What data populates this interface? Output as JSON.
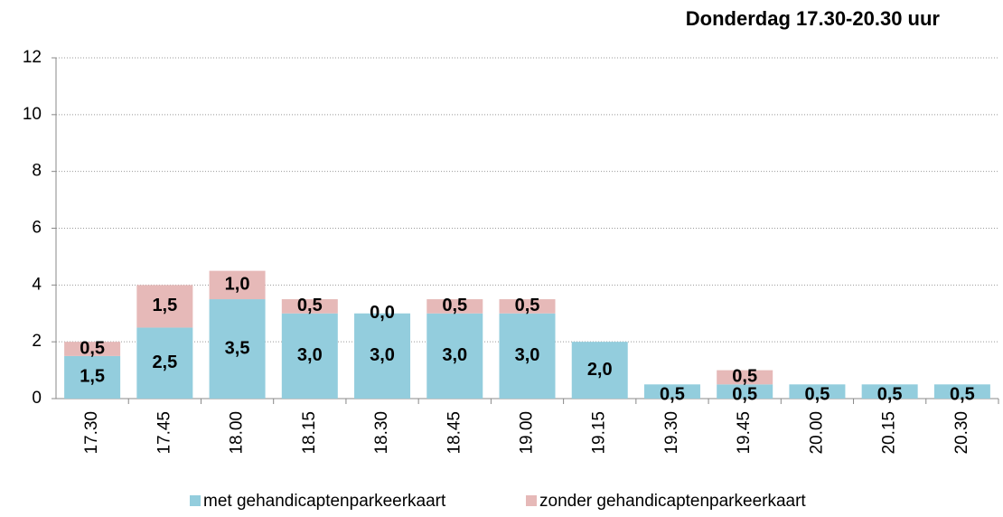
{
  "chart_data": {
    "type": "stacked_bar",
    "title": "Donderdag 17.30-20.30 uur",
    "categories": [
      "17.30",
      "17.45",
      "18.00",
      "18.15",
      "18.30",
      "18.45",
      "19.00",
      "19.15",
      "19.30",
      "19.45",
      "20.00",
      "20.15",
      "20.30"
    ],
    "series": [
      {
        "name": "met gehandicaptenparkeerkaart",
        "color": "#93cddd",
        "values": [
          1.5,
          2.5,
          3.5,
          3.0,
          3.0,
          3.0,
          3.0,
          2.0,
          0.5,
          0.5,
          0.5,
          0.5,
          0.5
        ],
        "value_labels": [
          "1,5",
          "2,5",
          "3,5",
          "3,0",
          "3,0",
          "3,0",
          "3,0",
          "2,0",
          "0,5",
          "0,5",
          "0,5",
          "0,5",
          "0,5"
        ]
      },
      {
        "name": "zonder gehandicaptenparkeerkaart",
        "color": "#e6b9b8",
        "values": [
          0.5,
          1.5,
          1.0,
          0.5,
          0.0,
          0.5,
          0.5,
          null,
          null,
          0.5,
          null,
          null,
          null
        ],
        "value_labels": [
          "0,5",
          "1,5",
          "1,0",
          "0,5",
          "0,0",
          "0,5",
          "0,5",
          null,
          null,
          "0,5",
          null,
          null,
          null
        ]
      }
    ],
    "ylim": [
      0,
      12
    ],
    "yticks": [
      0,
      2,
      4,
      6,
      8,
      10,
      12
    ],
    "grid": true,
    "legend": "bottom"
  }
}
